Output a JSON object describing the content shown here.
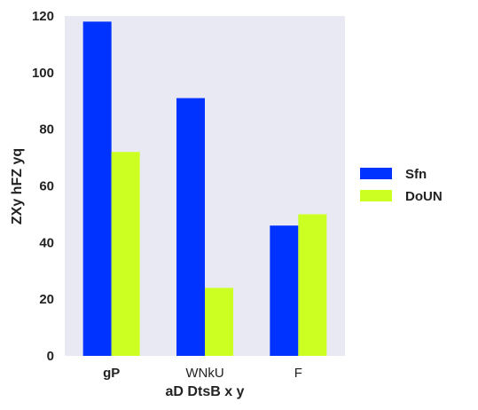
{
  "chart_data": {
    "type": "bar",
    "categories": [
      "gP",
      "WNkU",
      "F"
    ],
    "category_bold": [
      true,
      false,
      false
    ],
    "series": [
      {
        "name": "Sfn",
        "color": "#0033ff",
        "values": [
          118,
          91,
          46
        ]
      },
      {
        "name": "DoUN",
        "color": "#ccff22",
        "values": [
          72,
          24,
          50
        ]
      }
    ],
    "xlabel": "aD DtsB x y",
    "ylabel": "ZXy hFZ  yq",
    "ylim": [
      0,
      120
    ],
    "yticks": [
      0,
      20,
      40,
      60,
      80,
      100,
      120
    ],
    "grid": false,
    "legend_position": "right",
    "plot_background": "#e8e9f2"
  }
}
